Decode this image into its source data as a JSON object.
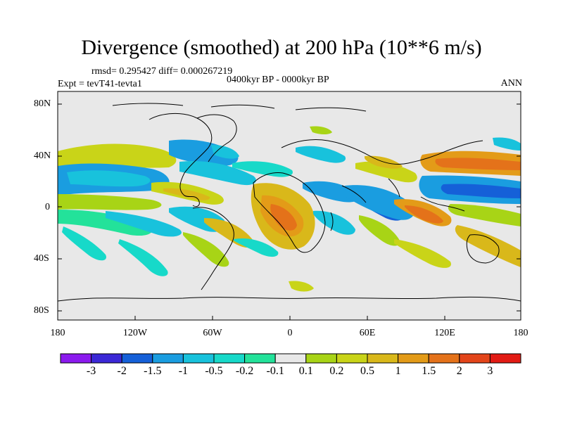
{
  "title": "Divergence (smoothed) at 200 hPa (10**6 m/s)",
  "stats": "rmsd= 0.295427 diff= 0.000267219",
  "expt": "Expt = tevT41-tevta1",
  "period": "0400kyr BP - 0000kyr BP",
  "season": "ANN",
  "lat_labels": [
    "80N",
    "40N",
    "0",
    "40S",
    "80S"
  ],
  "lon_labels": [
    "180",
    "120W",
    "60W",
    "0",
    "60E",
    "120E",
    "180"
  ],
  "colorbar": {
    "colors": [
      "#8b1aee",
      "#3b28d6",
      "#1560d8",
      "#1a9de0",
      "#18c2dc",
      "#17d9c9",
      "#23e29a",
      "#e8e8e8",
      "#a8d416",
      "#c9d418",
      "#d9b81a",
      "#e39b18",
      "#e4721a",
      "#e3451a",
      "#e21b14"
    ],
    "labels": [
      "-3",
      "-2",
      "-1.5",
      "-1",
      "-0.5",
      "-0.2",
      "-0.1",
      "0.1",
      "0.2",
      "0.5",
      "1",
      "1.5",
      "2",
      "3"
    ]
  }
}
